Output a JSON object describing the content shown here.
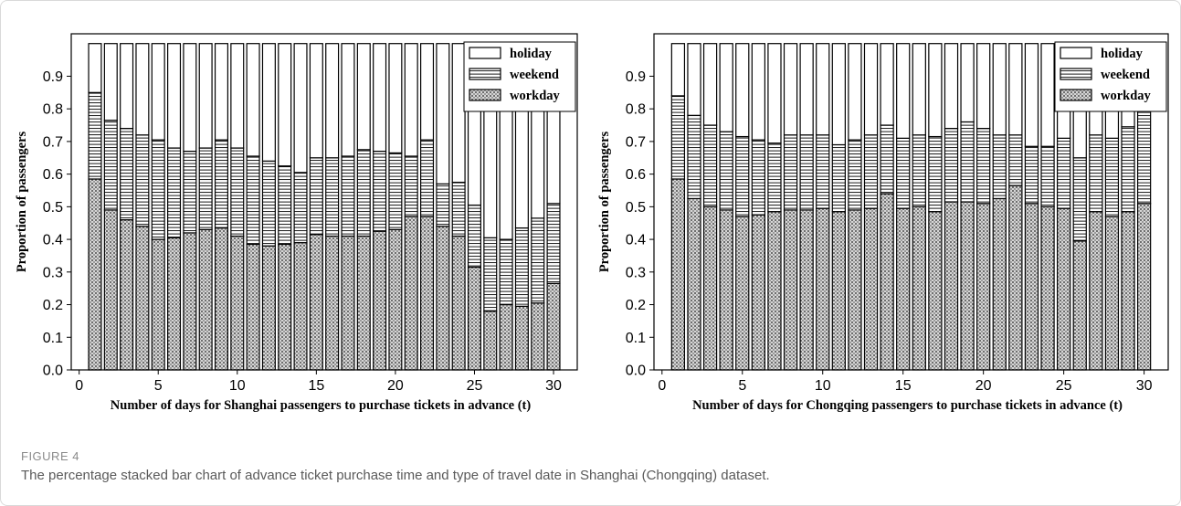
{
  "figure": {
    "label": "FIGURE 4",
    "caption": "The percentage stacked bar chart of advance ticket purchase time and type of travel date in Shanghai (Chongqing) dataset."
  },
  "colors": {
    "workday_fill": "#c9c9c9",
    "weekend_fill": "#ffffff",
    "holiday_fill": "#ffffff",
    "edge": "#000000"
  },
  "chart_data": [
    {
      "type": "bar",
      "stacked": true,
      "title": "",
      "xlabel": "Number of days for Shanghai passengers to purchase tickets in advance (t)",
      "ylabel": "Proportion of passengers",
      "xlim": [
        -0.5,
        31.5
      ],
      "ylim": [
        0,
        1.03
      ],
      "xticks": [
        0,
        5,
        10,
        15,
        20,
        25,
        30
      ],
      "yticks": [
        0.0,
        0.1,
        0.2,
        0.3,
        0.4,
        0.5,
        0.6,
        0.7,
        0.8,
        0.9
      ],
      "legend_position": "top-right",
      "grid": false,
      "x": [
        1,
        2,
        3,
        4,
        5,
        6,
        7,
        8,
        9,
        10,
        11,
        12,
        13,
        14,
        15,
        16,
        17,
        18,
        19,
        20,
        21,
        22,
        23,
        24,
        25,
        26,
        27,
        28,
        29,
        30
      ],
      "series": [
        {
          "name": "workday",
          "values": [
            0.585,
            0.49,
            0.46,
            0.44,
            0.4,
            0.405,
            0.42,
            0.43,
            0.435,
            0.41,
            0.385,
            0.38,
            0.385,
            0.39,
            0.415,
            0.41,
            0.41,
            0.41,
            0.425,
            0.43,
            0.47,
            0.47,
            0.44,
            0.41,
            0.315,
            0.18,
            0.2,
            0.195,
            0.205,
            0.265
          ]
        },
        {
          "name": "weekend",
          "values": [
            0.265,
            0.275,
            0.28,
            0.28,
            0.305,
            0.275,
            0.25,
            0.25,
            0.27,
            0.27,
            0.27,
            0.26,
            0.24,
            0.215,
            0.235,
            0.24,
            0.245,
            0.265,
            0.245,
            0.235,
            0.185,
            0.235,
            0.13,
            0.165,
            0.19,
            0.225,
            0.2,
            0.24,
            0.26,
            0.245
          ]
        },
        {
          "name": "holiday",
          "values": [
            0.15,
            0.235,
            0.26,
            0.28,
            0.295,
            0.32,
            0.33,
            0.32,
            0.295,
            0.32,
            0.345,
            0.36,
            0.375,
            0.395,
            0.35,
            0.35,
            0.345,
            0.325,
            0.33,
            0.335,
            0.345,
            0.295,
            0.43,
            0.425,
            0.495,
            0.595,
            0.6,
            0.565,
            0.535,
            0.49
          ]
        }
      ]
    },
    {
      "type": "bar",
      "stacked": true,
      "title": "",
      "xlabel": "Number of days for Chongqing passengers to purchase tickets in advance (t)",
      "ylabel": "Proportion of passengers",
      "xlim": [
        -0.5,
        31.5
      ],
      "ylim": [
        0,
        1.03
      ],
      "xticks": [
        0,
        5,
        10,
        15,
        20,
        25,
        30
      ],
      "yticks": [
        0.0,
        0.1,
        0.2,
        0.3,
        0.4,
        0.5,
        0.6,
        0.7,
        0.8,
        0.9
      ],
      "legend_position": "top-right",
      "grid": false,
      "x": [
        1,
        2,
        3,
        4,
        5,
        6,
        7,
        8,
        9,
        10,
        11,
        12,
        13,
        14,
        15,
        16,
        17,
        18,
        19,
        20,
        21,
        22,
        23,
        24,
        25,
        26,
        27,
        28,
        29,
        30
      ],
      "series": [
        {
          "name": "workday",
          "values": [
            0.585,
            0.525,
            0.5,
            0.49,
            0.47,
            0.475,
            0.485,
            0.49,
            0.49,
            0.495,
            0.485,
            0.49,
            0.495,
            0.54,
            0.495,
            0.5,
            0.485,
            0.515,
            0.515,
            0.51,
            0.525,
            0.565,
            0.51,
            0.5,
            0.495,
            0.395,
            0.485,
            0.47,
            0.485,
            0.51
          ]
        },
        {
          "name": "weekend",
          "values": [
            0.255,
            0.255,
            0.25,
            0.24,
            0.245,
            0.23,
            0.21,
            0.23,
            0.23,
            0.225,
            0.205,
            0.215,
            0.225,
            0.21,
            0.215,
            0.22,
            0.23,
            0.225,
            0.245,
            0.23,
            0.195,
            0.155,
            0.175,
            0.185,
            0.215,
            0.255,
            0.235,
            0.24,
            0.26,
            0.29
          ]
        },
        {
          "name": "holiday",
          "values": [
            0.16,
            0.22,
            0.25,
            0.27,
            0.285,
            0.295,
            0.305,
            0.28,
            0.28,
            0.28,
            0.31,
            0.295,
            0.28,
            0.25,
            0.29,
            0.28,
            0.285,
            0.26,
            0.24,
            0.26,
            0.28,
            0.28,
            0.315,
            0.315,
            0.29,
            0.35,
            0.28,
            0.29,
            0.255,
            0.2
          ]
        }
      ]
    }
  ]
}
